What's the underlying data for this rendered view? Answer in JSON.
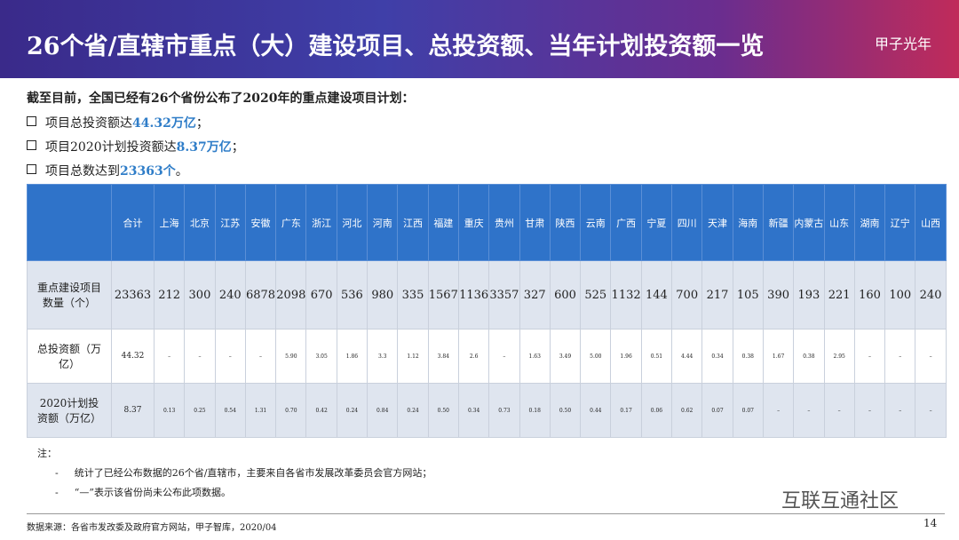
{
  "header": {
    "title": "26个省/直辖市重点（大）建设项目、总投资额、当年计划投资额一览",
    "logo": "甲子光年"
  },
  "intro": "截至目前，全国已经有26个省份公布了2020年的重点建设项目计划：",
  "bullets": [
    {
      "text": "项目总投资额达",
      "highlight": "44.32万亿",
      "end": "；"
    },
    {
      "text": "项目2020计划投资额达",
      "highlight": "8.37万亿",
      "end": "；"
    },
    {
      "text": "项目总数达到",
      "highlight": "23363个",
      "end": "。"
    }
  ],
  "table": {
    "columns": [
      "合计",
      "上海",
      "北京",
      "江苏",
      "安徽",
      "广东",
      "浙江",
      "河北",
      "河南",
      "江西",
      "福建",
      "重庆",
      "贵州",
      "甘肃",
      "陕西",
      "云南",
      "广西",
      "宁夏",
      "四川",
      "天津",
      "海南",
      "新疆",
      "内蒙古",
      "山东",
      "湖南",
      "辽宁",
      "山西"
    ],
    "rows": [
      {
        "label": "重点建设项目数量（个）",
        "cells": [
          "23363",
          "212",
          "300",
          "240",
          "6878",
          "2098",
          "670",
          "536",
          "980",
          "335",
          "1567",
          "1136",
          "3357",
          "327",
          "600",
          "525",
          "1132",
          "144",
          "700",
          "217",
          "105",
          "390",
          "193",
          "221",
          "160",
          "100",
          "240"
        ]
      },
      {
        "label": "总投资额（万亿）",
        "cells": [
          "44.32",
          "–",
          "–",
          "–",
          "–",
          "5.90",
          "3.05",
          "1.86",
          "3.3",
          "1.12",
          "3.84",
          "2.6",
          "–",
          "1.63",
          "3.49",
          "5.00",
          "1.96",
          "0.51",
          "4.44",
          "0.34",
          "0.38",
          "1.67",
          "0.38",
          "2.95",
          "–",
          "–",
          "–"
        ]
      },
      {
        "label": "2020计划投资额（万亿）",
        "cells": [
          "8.37",
          "0.13",
          "0.25",
          "0.54",
          "1.31",
          "0.70",
          "0.42",
          "0.24",
          "0.84",
          "0.24",
          "0.50",
          "0.34",
          "0.73",
          "0.18",
          "0.50",
          "0.44",
          "0.17",
          "0.06",
          "0.62",
          "0.07",
          "0.07",
          "–",
          "–",
          "–",
          "–",
          "–",
          "–"
        ]
      }
    ]
  },
  "notes": {
    "title": "注：",
    "items": [
      "统计了已经公布数据的26个省/直辖市，主要来自各省市发展改革委员会官方网站；",
      "“—”表示该省份尚未公布此项数据。"
    ]
  },
  "footer": {
    "source": "数据来源：各省市发改委及政府官方网站，甲子智库，2020/04",
    "page": "14",
    "watermark": "互联互通社区"
  }
}
